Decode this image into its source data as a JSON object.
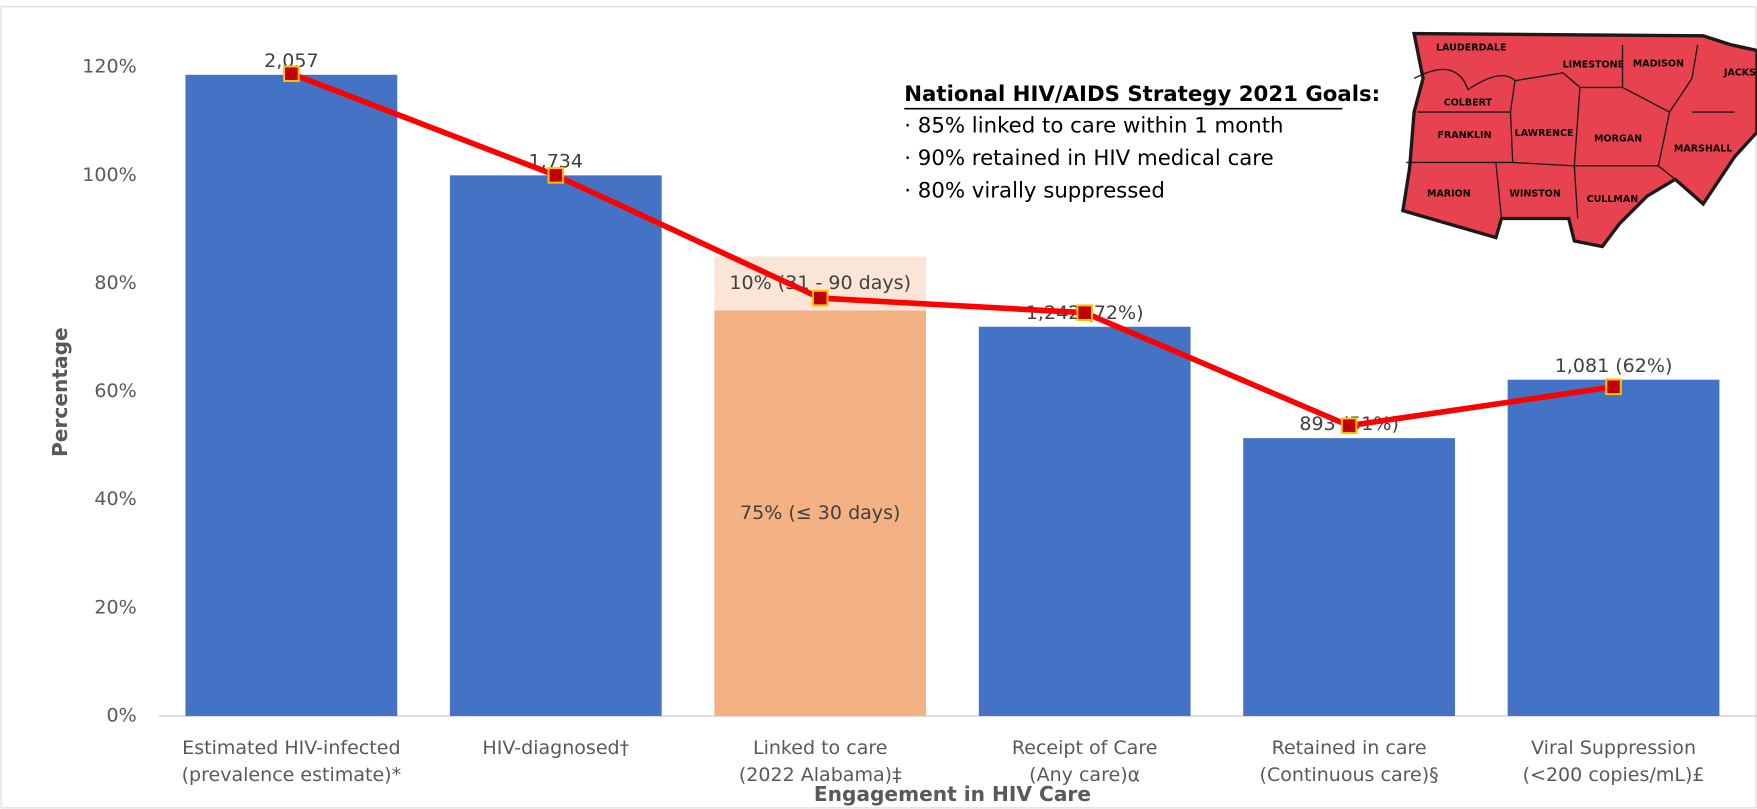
{
  "chart_data": {
    "type": "bar",
    "categories": [
      [
        "Estimated HIV-infected",
        "(prevalence estimate)*"
      ],
      [
        "HIV-diagnosed†"
      ],
      [
        "Linked to care",
        "(2022 Alabama)‡"
      ],
      [
        "Receipt of Care",
        "(Any care)α"
      ],
      [
        "Retained in care",
        "(Continuous care)§"
      ],
      [
        "Viral Suppression",
        "(<200 copies/mL)£"
      ]
    ],
    "x_label": "Engagement in HIV Care",
    "y_label": "Percentage",
    "ylim": [
      0,
      120
    ],
    "yticks": [
      {
        "value": 0,
        "label": "0%"
      },
      {
        "value": 20,
        "label": "20%"
      },
      {
        "value": 40,
        "label": "40%"
      },
      {
        "value": 60,
        "label": "60%"
      },
      {
        "value": 80,
        "label": "80%"
      },
      {
        "value": 100,
        "label": "100%"
      },
      {
        "value": 120,
        "label": "120%"
      }
    ],
    "grid": false,
    "series": [
      {
        "type": "bar",
        "color": "#4472c4",
        "values": [
          118.6,
          100,
          null,
          72,
          51.4,
          62.2
        ]
      },
      {
        "type": "bar",
        "color": "#f4b183",
        "values": [
          null,
          null,
          75,
          null,
          null,
          null
        ],
        "value_labels": [
          null,
          null,
          "75% (≤ 30 days)",
          null,
          null,
          null
        ]
      },
      {
        "type": "bar",
        "color": "#fbe5d6",
        "values": [
          null,
          null,
          10,
          null,
          null,
          null
        ],
        "value_labels": [
          null,
          null,
          "10% (31 - 90 days)",
          null,
          null,
          null
        ]
      },
      {
        "type": "line",
        "color": "#ff0000",
        "marker_color": "#c00000",
        "marker_edge": "#ffc000",
        "values": [
          118.8,
          100,
          77.3,
          74.6,
          53.7,
          60.9
        ]
      }
    ],
    "bar_labels": [
      "2,057",
      "1,734",
      null,
      "1,242 (72%)",
      "893 (51%)",
      "1,081 (62%)"
    ],
    "goals": {
      "title": "National HIV/AIDS Strategy 2021 Goals:",
      "items": [
        "· 85% linked to care within 1 month",
        "· 90% retained in HIV medical care",
        "· 80% virally suppressed"
      ]
    },
    "map": {
      "counties": [
        "LAUDERDALE",
        "LIMESTONE",
        "MADISON",
        "JACKSON",
        "COLBERT",
        "FRANKLIN",
        "LAWRENCE",
        "MORGAN",
        "MARSHALL",
        "MARION",
        "WINSTON",
        "CULLMAN"
      ]
    }
  }
}
